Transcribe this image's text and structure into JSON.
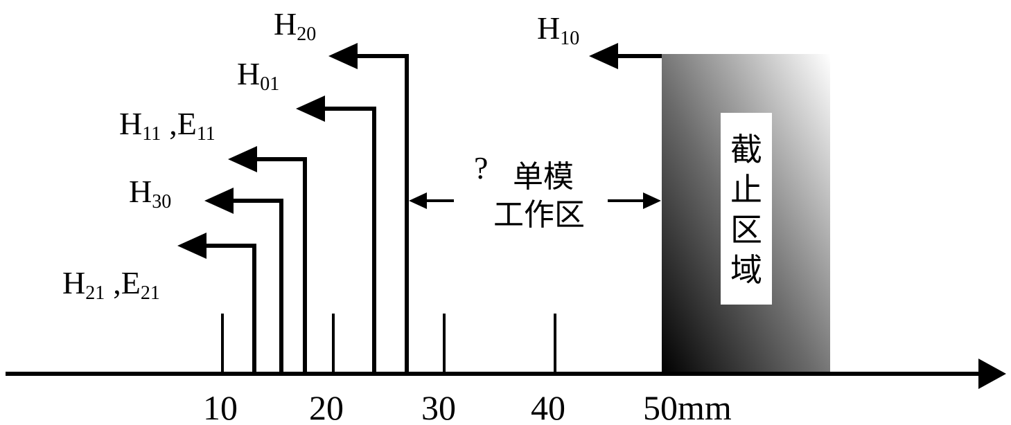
{
  "axis": {
    "ticks": [
      "10",
      "20",
      "30",
      "40",
      "50mm"
    ]
  },
  "modes": [
    {
      "main": "H",
      "sub": "20",
      "main2": "",
      "sub2": ""
    },
    {
      "main": "H",
      "sub": "01",
      "main2": "",
      "sub2": ""
    },
    {
      "main": "H",
      "sub": "11",
      "main2": ",E",
      "sub2": "11"
    },
    {
      "main": "H",
      "sub": "30",
      "main2": "",
      "sub2": ""
    },
    {
      "main": "H",
      "sub": "21",
      "main2": ",E",
      "sub2": "21"
    }
  ],
  "dominant_mode": {
    "main": "H",
    "sub": "10"
  },
  "single_mode_region": {
    "marker": "?",
    "line1": "单模",
    "line2": "工作区"
  },
  "cutoff_region": {
    "chars": [
      "截",
      "止",
      "区",
      "域"
    ]
  },
  "colors": {
    "ink": "#000000",
    "cutoff_dark": "#000000",
    "cutoff_light": "#ffffff"
  }
}
